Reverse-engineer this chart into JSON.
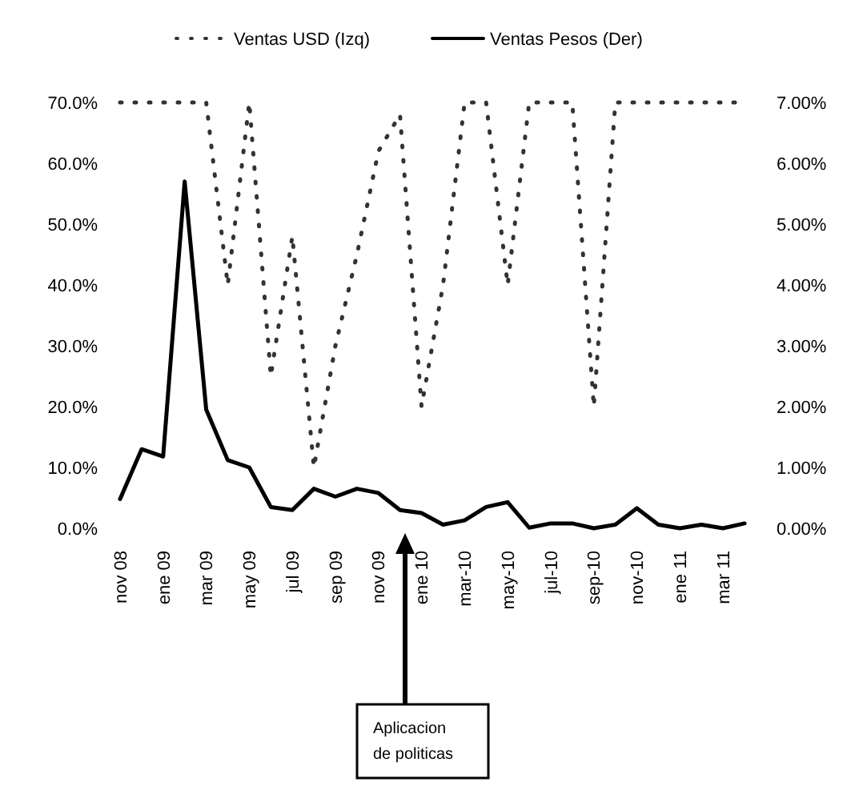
{
  "chart_data": {
    "type": "line",
    "categories": [
      "nov 08",
      null,
      "ene 09",
      null,
      "mar 09",
      null,
      "may 09",
      null,
      "jul 09",
      null,
      "sep 09",
      null,
      "nov 09",
      null,
      "ene 10",
      null,
      "mar-10",
      null,
      "may-10",
      null,
      "jul-10",
      null,
      "sep-10",
      null,
      "nov-10",
      null,
      "ene 11",
      null,
      "mar 11",
      null
    ],
    "series": [
      {
        "name": "Ventas USD (Izq)",
        "color": "#333333",
        "line_style": "dotted",
        "values": [
          70,
          70,
          70,
          70,
          70,
          40,
          70,
          25,
          48,
          10,
          30,
          45,
          62,
          68,
          20,
          40,
          70,
          70,
          40,
          70,
          70,
          70,
          20,
          70,
          70,
          70,
          70,
          70,
          70,
          70
        ]
      },
      {
        "name": "Ventas Pesos (Der)",
        "color": "#000000",
        "axis": "y2",
        "line_style": "solid",
        "values": [
          0.48,
          1.3,
          1.18,
          5.7,
          1.95,
          1.12,
          1.0,
          0.35,
          0.3,
          0.65,
          0.52,
          0.65,
          0.58,
          0.3,
          0.25,
          0.06,
          0.13,
          0.35,
          0.43,
          0.01,
          0.08,
          0.08,
          0.0,
          0.06,
          0.33,
          0.06,
          0.0,
          0.06,
          0.0,
          0.08
        ]
      }
    ],
    "ylim": [
      0,
      70
    ],
    "yticks": [
      {
        "value": 0,
        "label": "0.0%"
      },
      {
        "value": 10,
        "label": "10.0%"
      },
      {
        "value": 20,
        "label": "20.0%"
      },
      {
        "value": 30,
        "label": "30.0%"
      },
      {
        "value": 40,
        "label": "40.0%"
      },
      {
        "value": 50,
        "label": "50.0%"
      },
      {
        "value": 60,
        "label": "60.0%"
      },
      {
        "value": 70,
        "label": "70.0%"
      }
    ],
    "y2lim": [
      0,
      7
    ],
    "y2ticks": [
      {
        "value": 0,
        "label": "0.00%"
      },
      {
        "value": 1,
        "label": "1.00%"
      },
      {
        "value": 2,
        "label": "2.00%"
      },
      {
        "value": 3,
        "label": "3.00%"
      },
      {
        "value": 4,
        "label": "4.00%"
      },
      {
        "value": 5,
        "label": "5.00%"
      },
      {
        "value": 6,
        "label": "6.00%"
      },
      {
        "value": 7,
        "label": "7.00%"
      }
    ],
    "legend": "top",
    "grid": false,
    "marker": "none",
    "annotations": [
      "Aplicacion de politicas"
    ]
  }
}
